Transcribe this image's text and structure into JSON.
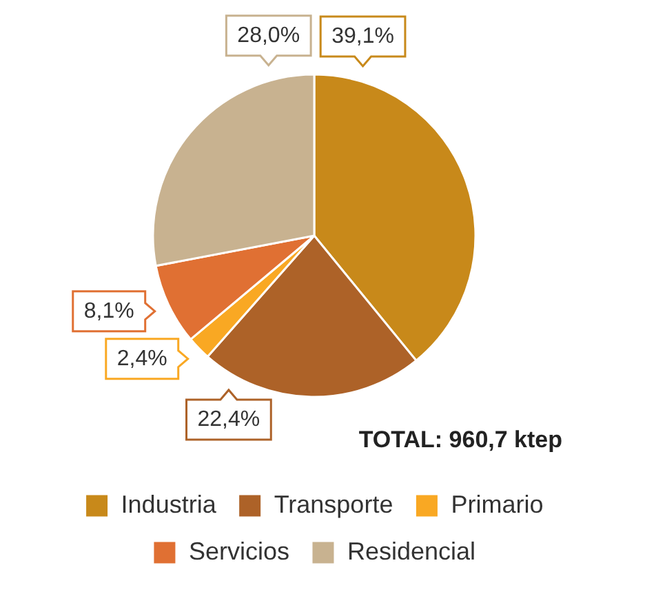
{
  "chart_data": {
    "type": "pie",
    "categories": [
      "Industria",
      "Transporte",
      "Primario",
      "Servicios",
      "Residencial"
    ],
    "values": [
      39.1,
      22.4,
      2.4,
      8.1,
      28.0
    ],
    "colors": [
      "#c8891a",
      "#ad6228",
      "#f9a823",
      "#e07033",
      "#c8b290"
    ],
    "value_labels": [
      "39,1%",
      "22,4%",
      "2,4%",
      "8,1%",
      "28,0%"
    ],
    "annotations": [
      "TOTAL: 960,7 ktep"
    ],
    "legend": "bottom"
  }
}
